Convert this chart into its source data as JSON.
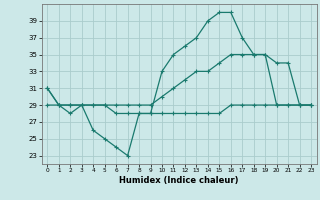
{
  "title": "",
  "xlabel": "Humidex (Indice chaleur)",
  "bg_color": "#cce8e8",
  "line_color": "#1a7a6e",
  "grid_color": "#aacccc",
  "ylim": [
    22,
    41
  ],
  "xlim": [
    -0.5,
    23.5
  ],
  "yticks": [
    23,
    25,
    27,
    29,
    31,
    33,
    35,
    37,
    39
  ],
  "xticks": [
    0,
    1,
    2,
    3,
    4,
    5,
    6,
    7,
    8,
    9,
    10,
    11,
    12,
    13,
    14,
    15,
    16,
    17,
    18,
    19,
    20,
    21,
    22,
    23
  ],
  "series1_x": [
    0,
    1,
    2,
    3,
    4,
    5,
    6,
    7,
    8,
    9,
    10,
    11,
    12,
    13,
    14,
    15,
    16,
    17,
    18,
    19,
    20,
    21,
    22,
    23
  ],
  "series1_y": [
    31,
    29,
    28,
    29,
    26,
    25,
    24,
    23,
    28,
    28,
    33,
    35,
    36,
    37,
    39,
    40,
    40,
    37,
    35,
    35,
    29,
    29,
    29,
    29
  ],
  "series2_x": [
    0,
    1,
    2,
    3,
    4,
    5,
    6,
    7,
    8,
    9,
    10,
    11,
    12,
    13,
    14,
    15,
    16,
    17,
    18,
    19,
    20,
    21,
    22,
    23
  ],
  "series2_y": [
    31,
    29,
    29,
    29,
    29,
    29,
    29,
    29,
    29,
    29,
    30,
    31,
    32,
    33,
    33,
    34,
    35,
    35,
    35,
    35,
    34,
    34,
    29,
    29
  ],
  "series3_x": [
    0,
    1,
    2,
    3,
    4,
    5,
    6,
    7,
    8,
    9,
    10,
    11,
    12,
    13,
    14,
    15,
    16,
    17,
    18,
    19,
    20,
    21,
    22,
    23
  ],
  "series3_y": [
    29,
    29,
    29,
    29,
    29,
    29,
    28,
    28,
    28,
    28,
    28,
    28,
    28,
    28,
    28,
    28,
    29,
    29,
    29,
    29,
    29,
    29,
    29,
    29
  ]
}
